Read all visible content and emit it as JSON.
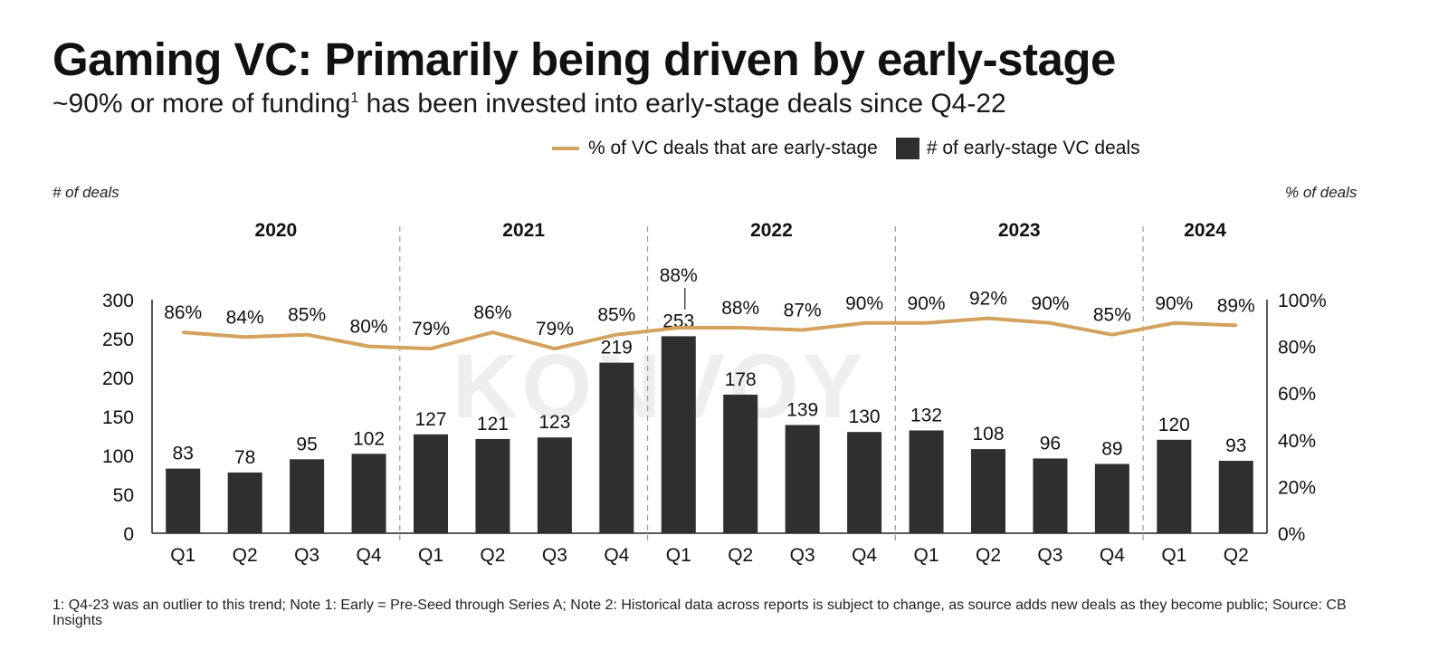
{
  "title": "Gaming VC: Primarily being driven by early-stage",
  "subtitle": "~90% or more of funding",
  "subtitle_sup": "1",
  "subtitle_rest": " has been invested into early-stage deals since Q4-22",
  "left_axis_caption": "# of deals",
  "right_axis_caption": "% of deals",
  "legend": {
    "line_label": "% of VC deals that are early-stage",
    "bar_label": "# of early-stage VC deals"
  },
  "watermark": "KONVOY",
  "footnote": "1: Q4-23 was an outlier to this trend; Note 1: Early = Pre-Seed through Series A; Note 2: Historical data across reports is subject to change, as source adds new deals as they become public; Source: CB Insights",
  "colors": {
    "bar": "#2f2f2f",
    "line": "#d4a25c"
  },
  "chart_data": {
    "type": "bar",
    "categories": [
      "Q1",
      "Q2",
      "Q3",
      "Q4",
      "Q1",
      "Q2",
      "Q3",
      "Q4",
      "Q1",
      "Q2",
      "Q3",
      "Q4",
      "Q1",
      "Q2",
      "Q3",
      "Q4",
      "Q1",
      "Q2"
    ],
    "years": [
      {
        "label": "2020",
        "start": 0,
        "count": 4
      },
      {
        "label": "2021",
        "start": 4,
        "count": 4
      },
      {
        "label": "2022",
        "start": 8,
        "count": 4
      },
      {
        "label": "2023",
        "start": 12,
        "count": 4
      },
      {
        "label": "2024",
        "start": 16,
        "count": 2
      }
    ],
    "series": [
      {
        "name": "# of early-stage VC deals",
        "type": "bar",
        "values": [
          83,
          78,
          95,
          102,
          127,
          121,
          123,
          219,
          253,
          178,
          139,
          130,
          132,
          108,
          96,
          89,
          120,
          93
        ]
      },
      {
        "name": "% of VC deals that are early-stage",
        "type": "line",
        "values": [
          86,
          84,
          85,
          80,
          79,
          86,
          79,
          85,
          88,
          88,
          87,
          90,
          90,
          92,
          90,
          85,
          90,
          89
        ],
        "labels": [
          "86%",
          "84%",
          "85%",
          "80%",
          "79%",
          "86%",
          "79%",
          "85%",
          "88%",
          "88%",
          "87%",
          "90%",
          "90%",
          "92%",
          "90%",
          "85%",
          "90%",
          "89%"
        ]
      }
    ],
    "ylim_left": [
      0,
      300
    ],
    "yticks_left": [
      "0",
      "50",
      "100",
      "150",
      "200",
      "250",
      "300"
    ],
    "ylim_right": [
      0,
      100
    ],
    "yticks_right": [
      "0%",
      "20%",
      "40%",
      "60%",
      "80%",
      "100%"
    ]
  }
}
